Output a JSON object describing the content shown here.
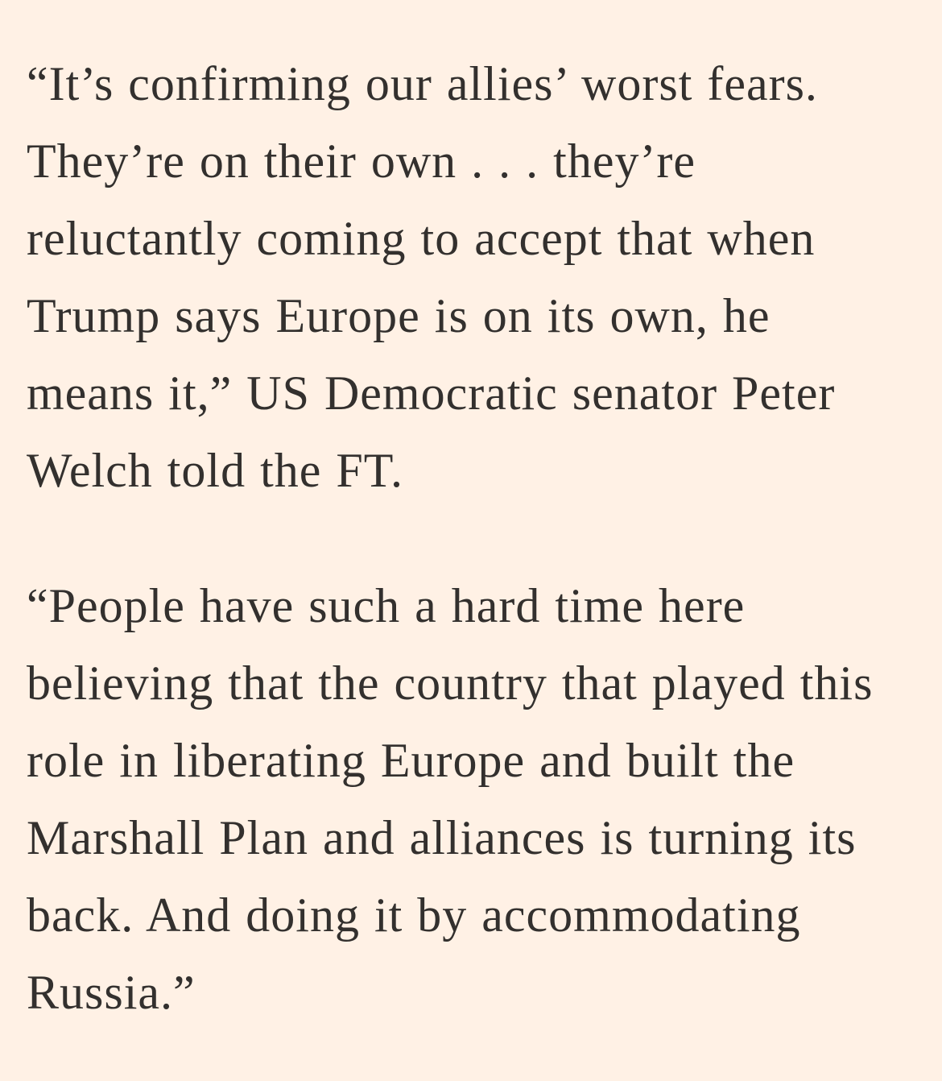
{
  "page": {
    "background_color": "#FFF1E5",
    "text_color": "#33302E"
  },
  "article": {
    "paragraphs": [
      {
        "text": "“It’s confirming our allies’ worst fears.\nThey’re on their own . . . they’re\nreluctantly coming to accept that when\nTrump says Europe is on its own, he\nmeans it,” US Democratic senator Peter\nWelch told the FT."
      },
      {
        "text": "“People have such a hard time here\nbelieving that the country that played this\nrole in liberating Europe and built the\nMarshall Plan and alliances is turning its\nback. And doing it by accommodating\nRussia.”"
      }
    ]
  }
}
